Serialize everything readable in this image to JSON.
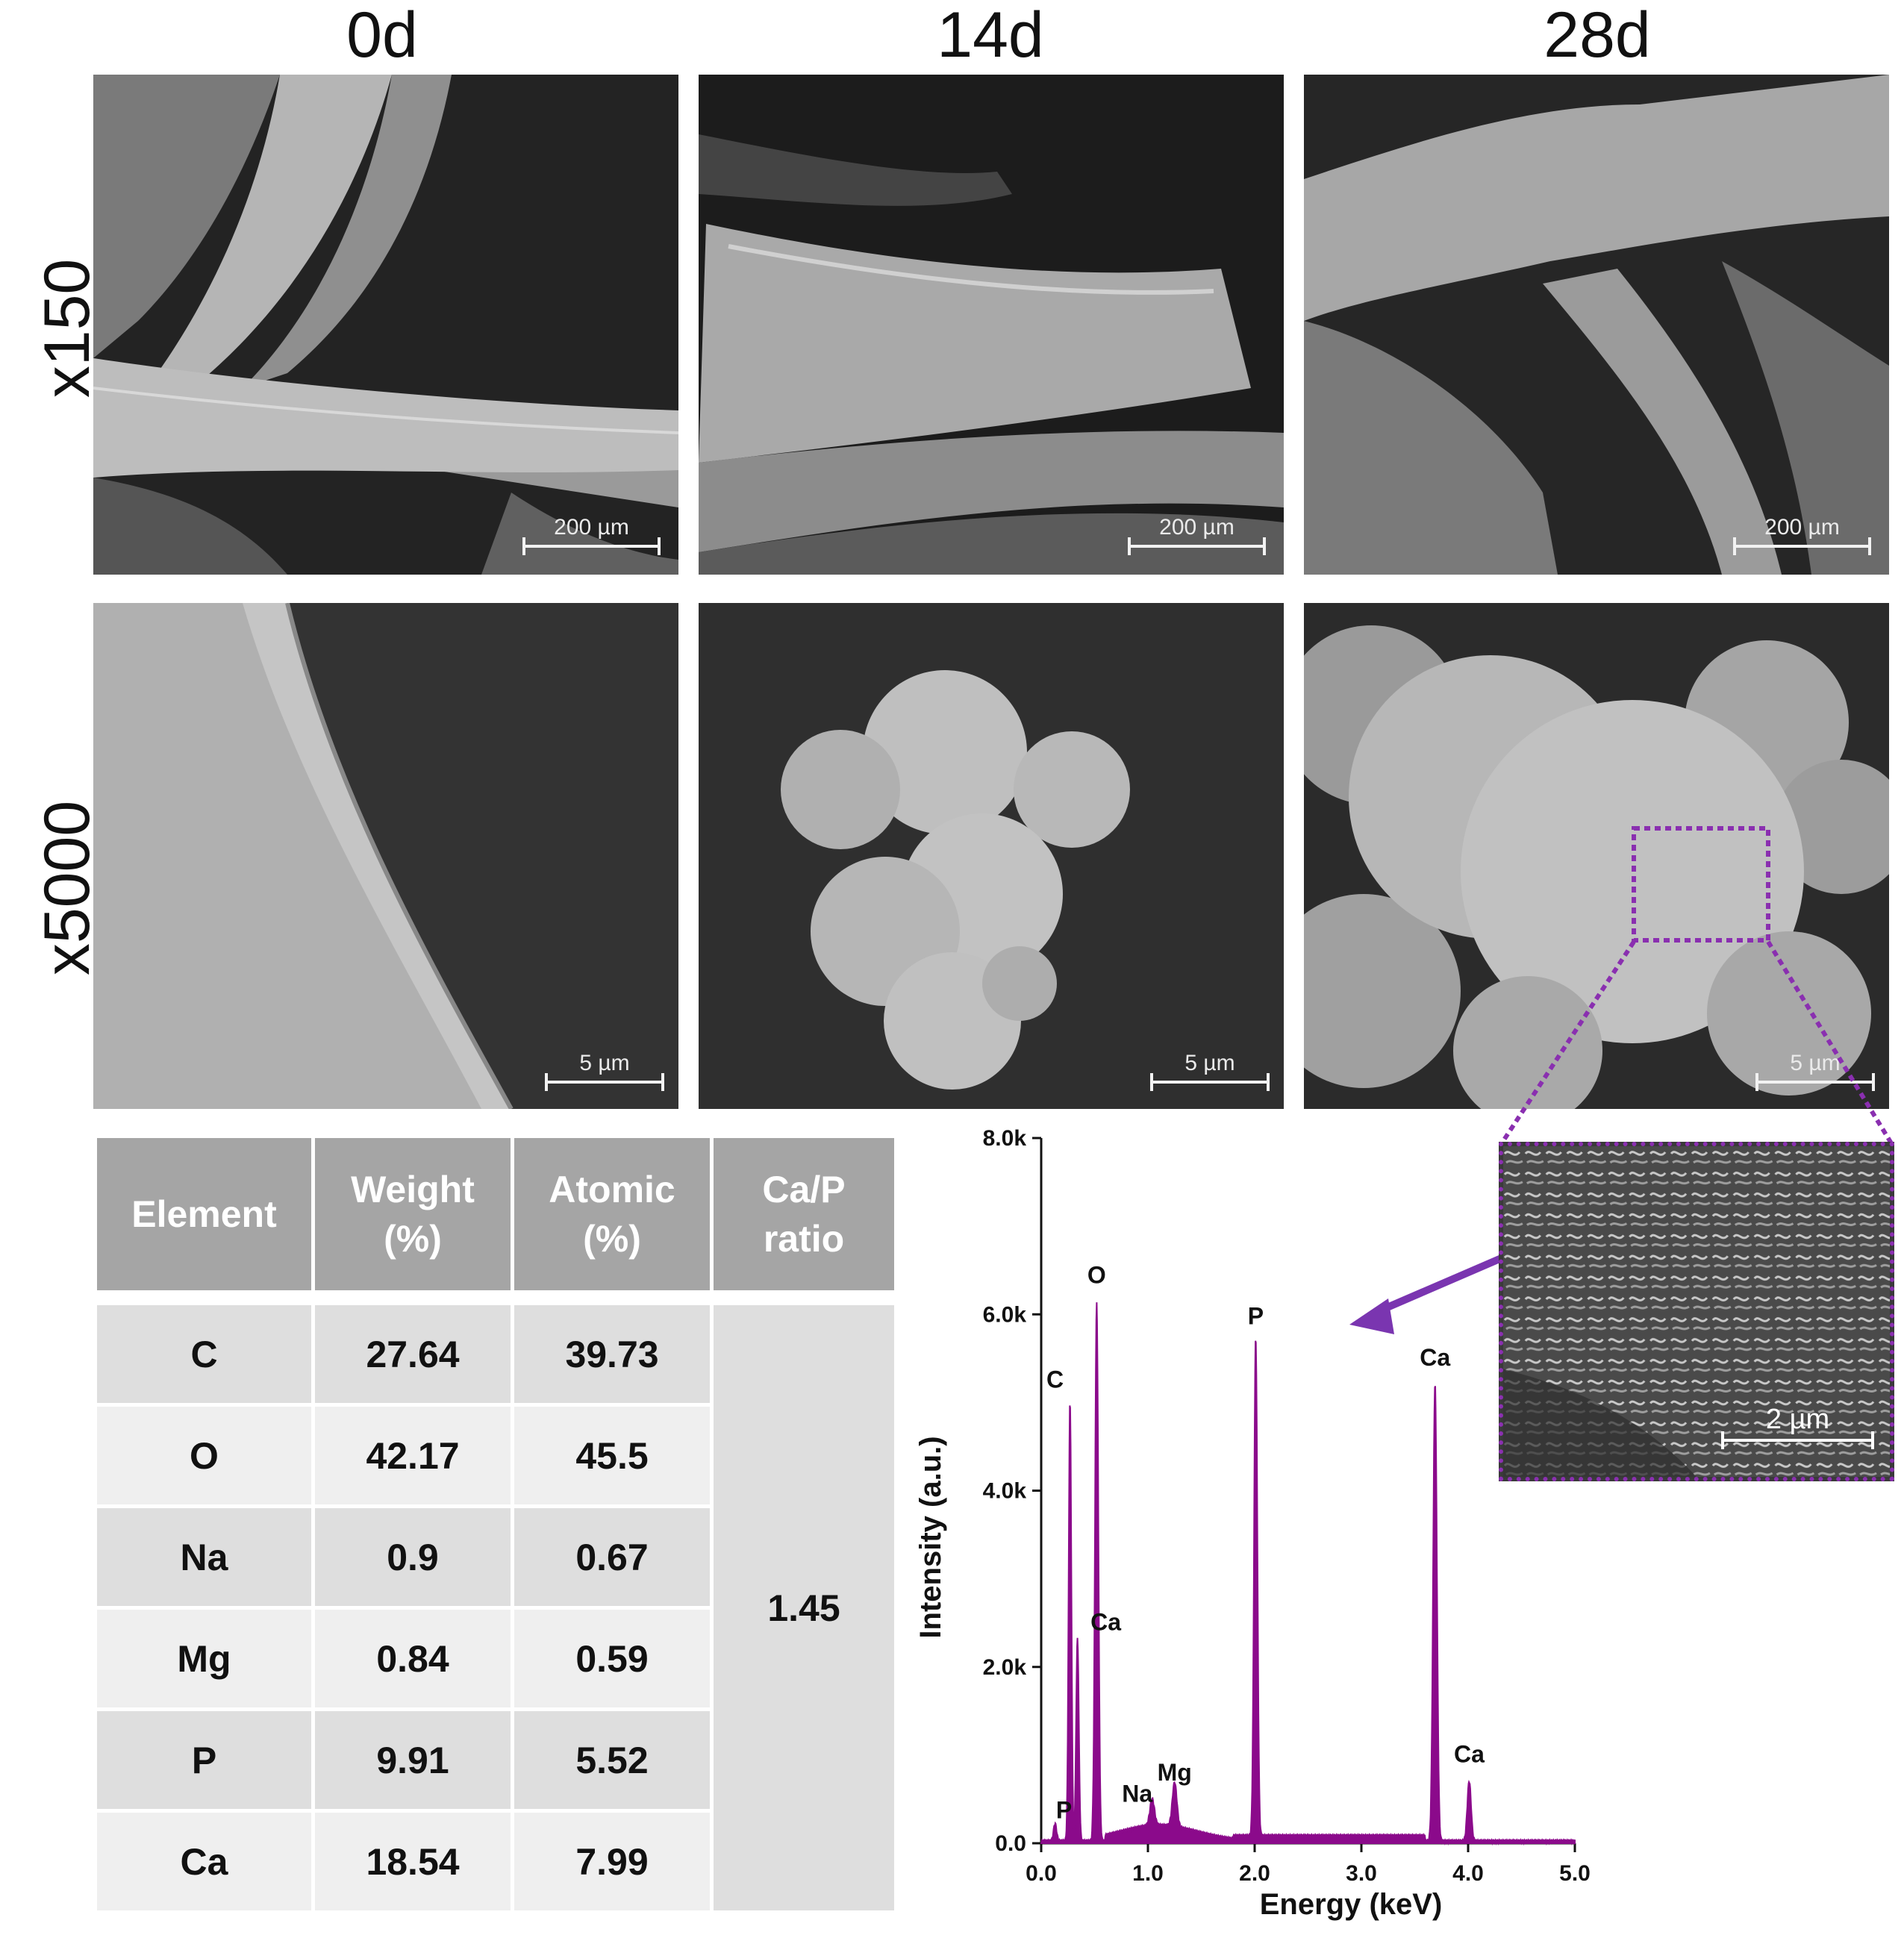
{
  "columns": [
    "0d",
    "14d",
    "28d"
  ],
  "rows": [
    "x150",
    "x5000"
  ],
  "scale_bars": {
    "row1": "200 µm",
    "row2": "5 µm",
    "inset": "2 µm"
  },
  "table": {
    "headers": [
      "Element",
      "Weight (%)",
      "Atomic (%)",
      "Ca/P ratio"
    ],
    "rows": [
      {
        "element": "C",
        "weight": "27.64",
        "atomic": "39.73"
      },
      {
        "element": "O",
        "weight": "42.17",
        "atomic": "45.5"
      },
      {
        "element": "Na",
        "weight": "0.9",
        "atomic": "0.67"
      },
      {
        "element": "Mg",
        "weight": "0.84",
        "atomic": "0.59"
      },
      {
        "element": "P",
        "weight": "9.91",
        "atomic": "5.52"
      },
      {
        "element": "Ca",
        "weight": "18.54",
        "atomic": "7.99"
      }
    ],
    "ca_p_ratio": "1.45"
  },
  "chart_data": {
    "type": "line",
    "title": "",
    "xlabel": "Energy (keV)",
    "ylabel": "Intensity (a.u.)",
    "xlim": [
      0.0,
      5.0
    ],
    "ylim": [
      0,
      8000
    ],
    "x_ticks": [
      "0.0",
      "1.0",
      "2.0",
      "3.0",
      "4.0",
      "5.0"
    ],
    "y_ticks": [
      "0.0",
      "2.0k",
      "4.0k",
      "6.0k",
      "8.0k"
    ],
    "color": "#8b0a8b",
    "peaks": [
      {
        "label": "P",
        "x": 0.13,
        "y": 200
      },
      {
        "label": "C",
        "x": 0.27,
        "y": 5000
      },
      {
        "label": "Ca",
        "x": 0.34,
        "y": 2300
      },
      {
        "label": "O",
        "x": 0.52,
        "y": 6100
      },
      {
        "label": "Na",
        "x": 1.04,
        "y": 300
      },
      {
        "label": "Mg",
        "x": 1.25,
        "y": 500
      },
      {
        "label": "P",
        "x": 2.01,
        "y": 5650
      },
      {
        "label": "Ca",
        "x": 3.69,
        "y": 5180
      },
      {
        "label": "Ca",
        "x": 4.01,
        "y": 680
      }
    ]
  },
  "inset_color": "#8a2fb0",
  "arrow_color": "#7a35b0"
}
